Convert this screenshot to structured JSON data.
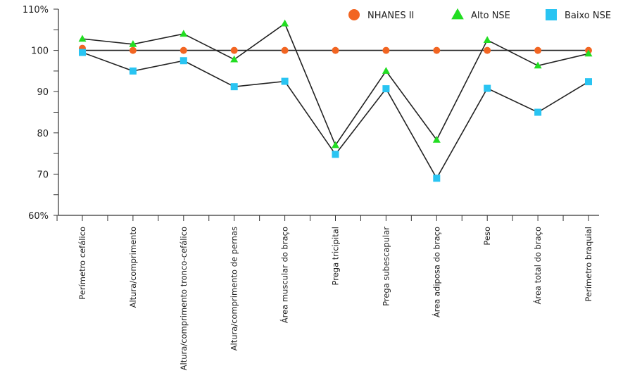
{
  "chart_data": {
    "type": "line",
    "title": "",
    "xlabel": "",
    "ylabel": "",
    "ylim": [
      60,
      110
    ],
    "yticks": [
      60,
      70,
      80,
      90,
      100,
      110
    ],
    "ytick_labels": [
      "60%",
      "70",
      "80",
      "90",
      "100",
      "110%"
    ],
    "grid": false,
    "legend_position": "top-right",
    "categories": [
      "Perímetro cefálico",
      "Altura/comprimento",
      "Altura/comprimento tronco-cefálico",
      "Altura/comprimento de pernas",
      "Área muscular do braço",
      "Prega tricipital",
      "Prega subescapular",
      "Área adiposa do braço",
      "Peso",
      "Área total do braço",
      "Perímetro braquial"
    ],
    "series": [
      {
        "name": "NHANES II",
        "marker": "circle",
        "color": "#F26522",
        "line": false,
        "values": [
          100.5,
          100,
          100,
          100,
          100,
          100,
          100,
          100,
          100,
          100,
          100
        ]
      },
      {
        "name": "Alto NSE",
        "marker": "triangle",
        "color": "#22DD22",
        "line": true,
        "values": [
          102.8,
          101.5,
          104,
          97.8,
          106.5,
          77,
          95,
          78.3,
          102.5,
          96.3,
          99.2
        ]
      },
      {
        "name": "Baixo NSE",
        "marker": "square",
        "color": "#29C4F2",
        "line": true,
        "values": [
          99.5,
          95,
          97.5,
          91.2,
          92.5,
          74.8,
          90.7,
          69,
          90.8,
          85,
          92.4
        ]
      }
    ],
    "reference_line": {
      "value": 100
    }
  }
}
